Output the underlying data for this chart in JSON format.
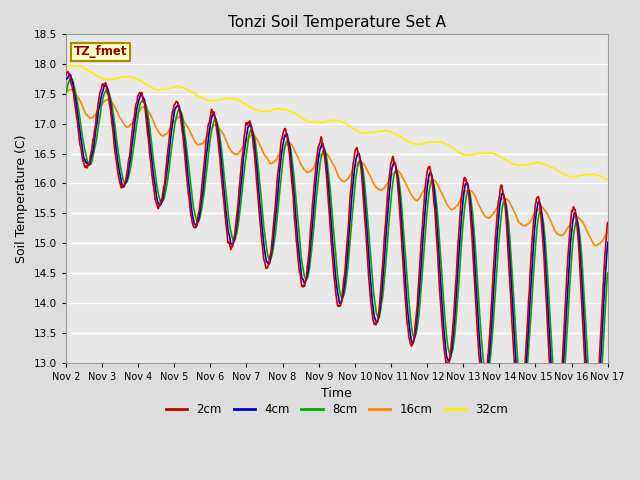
{
  "title": "Tonzi Soil Temperature Set A",
  "xlabel": "Time",
  "ylabel": "Soil Temperature (C)",
  "ylim": [
    13.0,
    18.5
  ],
  "yticks": [
    13.0,
    13.5,
    14.0,
    14.5,
    15.0,
    15.5,
    16.0,
    16.5,
    17.0,
    17.5,
    18.0,
    18.5
  ],
  "background_color": "#dddddd",
  "plot_bg_color": "#e8e8e8",
  "grid_color": "#ffffff",
  "label_box_text": "TZ_fmet",
  "label_box_bg": "#ffffcc",
  "label_box_border": "#aa8800",
  "label_box_text_color": "#990000",
  "lines": {
    "2cm": {
      "color": "#cc0000",
      "lw": 1.2,
      "label": "2cm"
    },
    "4cm": {
      "color": "#0000cc",
      "lw": 1.2,
      "label": "4cm"
    },
    "8cm": {
      "color": "#00aa00",
      "lw": 1.2,
      "label": "8cm"
    },
    "16cm": {
      "color": "#ff8800",
      "lw": 1.2,
      "label": "16cm"
    },
    "32cm": {
      "color": "#ffee00",
      "lw": 1.2,
      "label": "32cm"
    }
  },
  "n_points": 1440,
  "xtick_days": [
    2,
    3,
    4,
    5,
    6,
    7,
    8,
    9,
    10,
    11,
    12,
    13,
    14,
    15,
    16,
    17
  ],
  "xtick_labels": [
    "Nov 2",
    "Nov 3",
    "Nov 4",
    "Nov 5",
    "Nov 6",
    "Nov 7",
    "Nov 8",
    "Nov 9",
    "Nov 10",
    "Nov 11",
    "Nov 12",
    "Nov 13",
    "Nov 14",
    "Nov 15",
    "Nov 16",
    "Nov 17"
  ]
}
